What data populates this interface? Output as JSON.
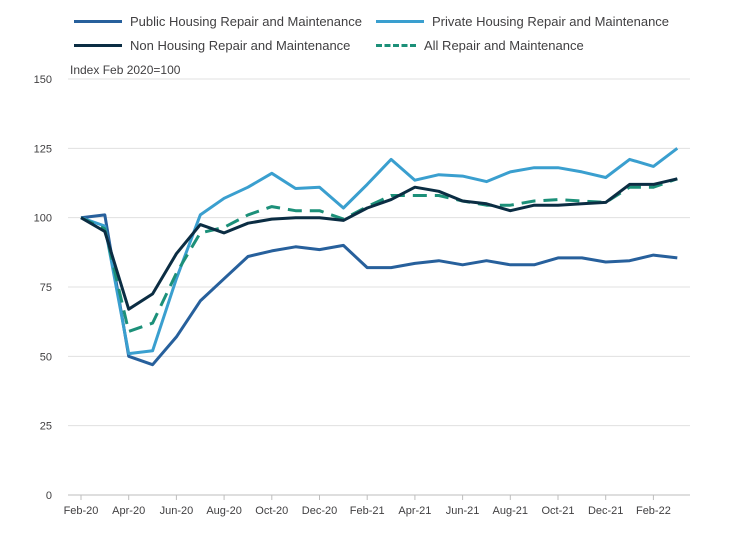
{
  "chart_data": {
    "type": "line",
    "y_unit_label": "Index Feb 2020=100",
    "ylim": [
      0,
      150
    ],
    "y_ticks": [
      0,
      25,
      50,
      75,
      100,
      125,
      150
    ],
    "x_tick_labels": [
      "Feb-20",
      "Apr-20",
      "Jun-20",
      "Aug-20",
      "Oct-20",
      "Dec-20",
      "Feb-21",
      "Apr-21",
      "Jun-21",
      "Aug-21",
      "Oct-21",
      "Dec-21",
      "Feb-22"
    ],
    "x": [
      "Feb-20",
      "Mar-20",
      "Apr-20",
      "May-20",
      "Jun-20",
      "Jul-20",
      "Aug-20",
      "Sep-20",
      "Oct-20",
      "Nov-20",
      "Dec-20",
      "Jan-21",
      "Feb-21",
      "Mar-21",
      "Apr-21",
      "May-21",
      "Jun-21",
      "Jul-21",
      "Aug-21",
      "Sep-21",
      "Oct-21",
      "Nov-21",
      "Dec-21",
      "Jan-22",
      "Feb-22",
      "Mar-22"
    ],
    "grid": "horizontal",
    "legend_position": "top",
    "series": [
      {
        "name": "Public Housing Repair and Maintenance",
        "color": "#27609c",
        "dash": "solid",
        "values": [
          100,
          101,
          50,
          47,
          57,
          70,
          78,
          86,
          88,
          89.5,
          88.5,
          90,
          82,
          82,
          83.5,
          84.5,
          83,
          84.5,
          83,
          83,
          85.5,
          85.5,
          84,
          84.5,
          86.5,
          85.5
        ]
      },
      {
        "name": "Private Housing Repair and Maintenance",
        "color": "#3a9fcf",
        "dash": "solid",
        "values": [
          100,
          97,
          51,
          52,
          78,
          101,
          107,
          111,
          116,
          110.5,
          111,
          103.5,
          112,
          121,
          113.5,
          115.5,
          115,
          113,
          116.5,
          118,
          118,
          116.5,
          114.5,
          121,
          118.5,
          125
        ]
      },
      {
        "name": "Non Housing Repair and Maintenance",
        "color": "#0b2d43",
        "dash": "solid",
        "values": [
          100,
          95,
          67,
          72.5,
          87,
          97.5,
          94.5,
          98,
          99.5,
          100,
          100,
          99,
          103.5,
          106.5,
          111,
          109.5,
          106,
          105,
          102.5,
          104.5,
          104.5,
          105,
          105.5,
          112,
          112,
          114
        ]
      },
      {
        "name": "All Repair and Maintenance",
        "color": "#1c9079",
        "dash": "dashed",
        "values": [
          100,
          96,
          59,
          62,
          80,
          94.5,
          96.5,
          101,
          104,
          102.5,
          102.5,
          99.5,
          104,
          108,
          108,
          108,
          106,
          104.5,
          104.5,
          106,
          106.5,
          106,
          105.5,
          111,
          111,
          114
        ]
      }
    ]
  }
}
